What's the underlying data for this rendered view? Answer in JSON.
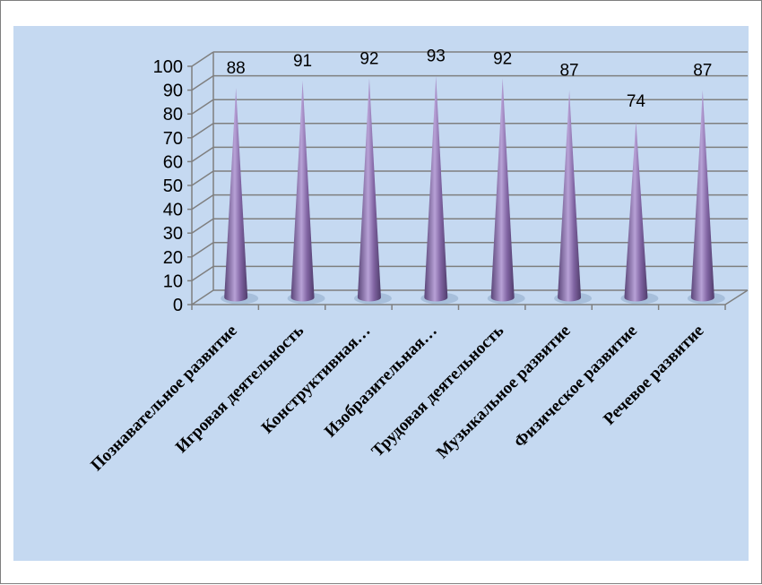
{
  "chart_data": {
    "type": "bar",
    "style": "3d-cone",
    "categories": [
      "Познавательное развитие",
      "Игровая деятельность",
      "Конструктивная…",
      "Изобразительная…",
      "Трудовая деятельность",
      "Музыкальное развитие",
      "Физическое развитие",
      "Речевое развитие"
    ],
    "values": [
      88,
      91,
      92,
      93,
      92,
      87,
      74,
      87
    ],
    "y_ticks": [
      "0",
      "10",
      "20",
      "30",
      "40",
      "50",
      "60",
      "70",
      "80",
      "90",
      "100"
    ],
    "ylim": [
      0,
      100
    ],
    "title": "",
    "xlabel": "",
    "ylabel": "",
    "grid": true,
    "legend": "none",
    "colors": {
      "plot_background": "#c5d9f1",
      "cone_light": "#b7a1d6",
      "cone_mid": "#8064a2",
      "cone_dark": "#5a4578",
      "gridline": "#7f7f7f",
      "frame": "#7f7f7f"
    }
  }
}
